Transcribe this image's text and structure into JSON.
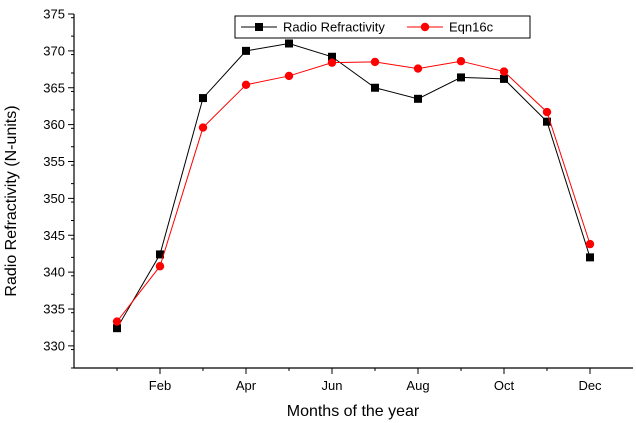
{
  "chart_data": {
    "type": "line",
    "xlabel": "Months of the year",
    "ylabel": "Radio Refractivity (N-units)",
    "ylim": [
      327,
      375
    ],
    "y_ticks": [
      330,
      335,
      340,
      345,
      350,
      355,
      360,
      365,
      370,
      375
    ],
    "x_range": [
      0,
      13
    ],
    "x_ticks": [
      {
        "x": 2,
        "label": "Feb"
      },
      {
        "x": 4,
        "label": "Apr"
      },
      {
        "x": 6,
        "label": "Jun"
      },
      {
        "x": 8,
        "label": "Aug"
      },
      {
        "x": 10,
        "label": "Oct"
      },
      {
        "x": 12,
        "label": "Dec"
      }
    ],
    "x_minor_ticks": [
      1,
      3,
      5,
      7,
      9,
      11
    ],
    "x": [
      1,
      2,
      3,
      4,
      5,
      6,
      7,
      8,
      9,
      10,
      11,
      12
    ],
    "legend_position": "top-right",
    "series": [
      {
        "name": "Radio Refractivity",
        "color": "#000000",
        "marker": "square",
        "values": [
          332.4,
          342.4,
          363.6,
          370.0,
          371.0,
          369.2,
          365.0,
          363.5,
          366.4,
          366.2,
          360.4,
          342.0
        ]
      },
      {
        "name": "Eqn16c",
        "color": "#ff0000",
        "marker": "circle",
        "values": [
          333.3,
          340.8,
          359.6,
          365.4,
          366.6,
          368.4,
          368.5,
          367.6,
          368.6,
          367.2,
          361.7,
          343.8
        ]
      }
    ]
  }
}
